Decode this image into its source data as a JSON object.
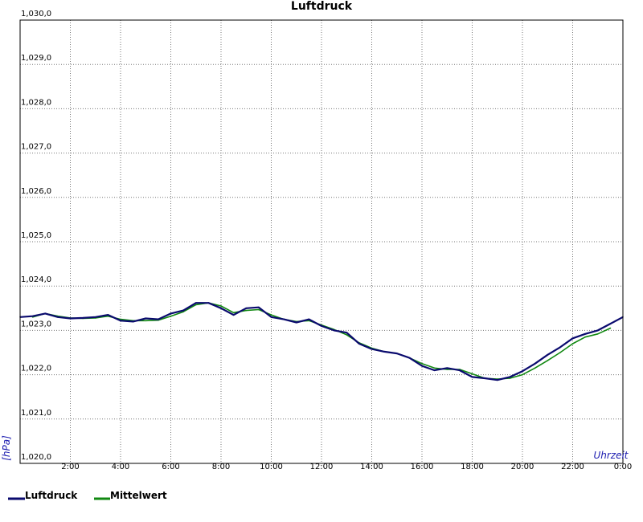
{
  "chart_data": {
    "type": "line",
    "title": "Luftdruck",
    "xlabel": "Uhrzeit",
    "ylabel": "[hPa]",
    "xlim": [
      0,
      24
    ],
    "ylim": [
      1020.0,
      1030.0
    ],
    "x_ticks": [
      "2:00",
      "4:00",
      "6:00",
      "8:00",
      "10:00",
      "12:00",
      "14:00",
      "16:00",
      "18:00",
      "20:00",
      "22:00",
      "0:00"
    ],
    "y_ticks": [
      "1,020,0",
      "1,021,0",
      "1,022,0",
      "1,023,0",
      "1,024,0",
      "1,025,0",
      "1,026,0",
      "1,027,0",
      "1,028,0",
      "1,029,0",
      "1,030,0"
    ],
    "grid": true,
    "legend_position": "bottom-left",
    "series": [
      {
        "name": "Luftdruck",
        "color": "#0a0a6e",
        "x": [
          0.0,
          0.5,
          1.0,
          1.5,
          2.0,
          2.5,
          3.0,
          3.5,
          4.0,
          4.5,
          5.0,
          5.5,
          6.0,
          6.5,
          7.0,
          7.5,
          8.0,
          8.5,
          9.0,
          9.5,
          10.0,
          10.5,
          11.0,
          11.5,
          12.0,
          12.5,
          13.0,
          13.5,
          14.0,
          14.5,
          15.0,
          15.5,
          16.0,
          16.5,
          17.0,
          17.5,
          18.0,
          18.5,
          19.0,
          19.5,
          20.0,
          20.5,
          21.0,
          21.5,
          22.0,
          22.5,
          23.0,
          23.5,
          24.0
        ],
        "values": [
          1023.3,
          1023.32,
          1023.38,
          1023.3,
          1023.27,
          1023.28,
          1023.3,
          1023.35,
          1023.22,
          1023.2,
          1023.27,
          1023.25,
          1023.38,
          1023.45,
          1023.62,
          1023.62,
          1023.5,
          1023.35,
          1023.5,
          1023.52,
          1023.3,
          1023.25,
          1023.18,
          1023.25,
          1023.1,
          1023.0,
          1022.95,
          1022.7,
          1022.58,
          1022.52,
          1022.48,
          1022.38,
          1022.2,
          1022.1,
          1022.15,
          1022.1,
          1021.95,
          1021.92,
          1021.88,
          1021.95,
          1022.08,
          1022.25,
          1022.45,
          1022.62,
          1022.82,
          1022.92,
          1023.0,
          1023.15,
          1023.3
        ]
      },
      {
        "name": "Mittelwert",
        "color": "#118811",
        "x": [
          0.5,
          1.0,
          1.5,
          2.0,
          2.5,
          3.0,
          3.5,
          4.0,
          4.5,
          5.0,
          5.5,
          6.0,
          6.5,
          7.0,
          7.5,
          8.0,
          8.5,
          9.0,
          9.5,
          10.0,
          10.5,
          11.0,
          11.5,
          12.0,
          12.5,
          13.0,
          13.5,
          14.0,
          14.5,
          15.0,
          15.5,
          16.0,
          16.5,
          17.0,
          17.5,
          18.0,
          18.5,
          19.0,
          19.5,
          20.0,
          20.5,
          21.0,
          21.5,
          22.0,
          22.5,
          23.0,
          23.5
        ],
        "values": [
          1023.3,
          1023.38,
          1023.32,
          1023.28,
          1023.27,
          1023.28,
          1023.32,
          1023.25,
          1023.22,
          1023.22,
          1023.23,
          1023.32,
          1023.42,
          1023.58,
          1023.62,
          1023.55,
          1023.4,
          1023.45,
          1023.47,
          1023.35,
          1023.25,
          1023.2,
          1023.22,
          1023.12,
          1023.02,
          1022.9,
          1022.72,
          1022.6,
          1022.52,
          1022.48,
          1022.38,
          1022.25,
          1022.15,
          1022.12,
          1022.12,
          1022.02,
          1021.92,
          1021.9,
          1021.92,
          1022.0,
          1022.15,
          1022.32,
          1022.5,
          1022.7,
          1022.85,
          1022.92,
          1023.05
        ]
      }
    ]
  }
}
